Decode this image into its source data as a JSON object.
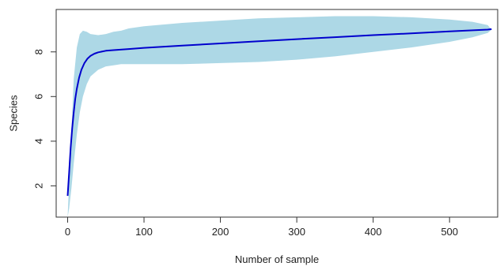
{
  "chart_data": {
    "type": "area",
    "xlabel": "Number of sample",
    "ylabel": "Species",
    "xlim": [
      -15,
      563
    ],
    "ylim": [
      0.6,
      9.9
    ],
    "x_ticks": [
      0,
      100,
      200,
      300,
      400,
      500
    ],
    "y_ticks": [
      2,
      4,
      6,
      8
    ],
    "x_tick_labels": [
      "0",
      "100",
      "200",
      "300",
      "400",
      "500"
    ],
    "y_tick_labels": [
      "2",
      "4",
      "6",
      "8"
    ],
    "grid": false,
    "series": [
      {
        "kind": "band",
        "color": "#add8e6",
        "x": [
          0,
          2,
          5,
          8,
          12,
          16,
          20,
          25,
          30,
          40,
          50,
          60,
          70,
          80,
          100,
          150,
          200,
          250,
          300,
          350,
          400,
          450,
          500,
          530,
          550,
          555
        ],
        "lower": [
          0.6,
          1.0,
          1.9,
          3.0,
          4.3,
          5.3,
          6.0,
          6.55,
          6.9,
          7.2,
          7.35,
          7.4,
          7.45,
          7.45,
          7.45,
          7.45,
          7.5,
          7.55,
          7.65,
          7.8,
          8.0,
          8.2,
          8.45,
          8.65,
          8.85,
          9.0
        ],
        "upper": [
          0.6,
          2.2,
          4.5,
          6.8,
          8.2,
          8.8,
          8.95,
          8.9,
          8.8,
          8.75,
          8.8,
          8.9,
          8.95,
          9.05,
          9.15,
          9.3,
          9.4,
          9.5,
          9.55,
          9.6,
          9.6,
          9.55,
          9.45,
          9.35,
          9.2,
          9.0
        ]
      },
      {
        "kind": "line",
        "color": "#0000cd",
        "x": [
          0,
          2,
          4,
          6,
          8,
          10,
          12,
          15,
          18,
          22,
          26,
          30,
          35,
          40,
          50,
          60,
          80,
          100,
          150,
          200,
          250,
          300,
          350,
          400,
          450,
          500,
          550,
          555
        ],
        "y": [
          1.55,
          2.6,
          3.7,
          4.6,
          5.3,
          5.9,
          6.35,
          6.85,
          7.2,
          7.5,
          7.7,
          7.82,
          7.92,
          7.98,
          8.05,
          8.08,
          8.13,
          8.18,
          8.28,
          8.38,
          8.48,
          8.57,
          8.66,
          8.75,
          8.83,
          8.92,
          9.0,
          9.02
        ]
      }
    ]
  }
}
